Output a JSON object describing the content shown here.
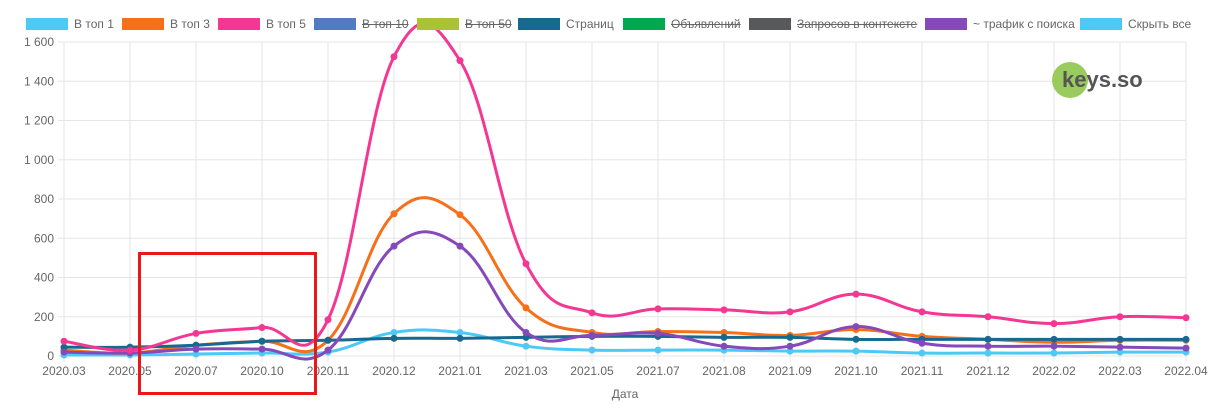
{
  "legend": [
    {
      "label": "В топ 1",
      "color": "#4dc9f6",
      "hidden": false
    },
    {
      "label": "В топ 3",
      "color": "#f67019",
      "hidden": false
    },
    {
      "label": "В топ 5",
      "color": "#f53794",
      "hidden": false
    },
    {
      "label": "В топ 10",
      "color": "#537bc4",
      "hidden": true
    },
    {
      "label": "В топ 50",
      "color": "#acc236",
      "hidden": true
    },
    {
      "label": "Страниц",
      "color": "#166a8f",
      "hidden": false
    },
    {
      "label": "Объявлений",
      "color": "#00a950",
      "hidden": true
    },
    {
      "label": "Запросов в контексте",
      "color": "#58595b",
      "hidden": true
    },
    {
      "label": "~ трафик с поиска",
      "color": "#8549ba",
      "hidden": false
    },
    {
      "label": "Скрыть все",
      "color": "#4dc9f6",
      "hidden": false
    }
  ],
  "watermark": {
    "text": "keys.so"
  },
  "chart_data": {
    "type": "line",
    "xlabel": "Дата",
    "ylabel": "",
    "ylim": [
      0,
      1600
    ],
    "yticks": [
      0,
      200,
      400,
      600,
      800,
      1000,
      1200,
      1400,
      1600
    ],
    "ytick_labels": [
      "0",
      "200",
      "400",
      "600",
      "800",
      "1 000",
      "1 200",
      "1 400",
      "1 600"
    ],
    "grid": true,
    "legend_position": "top",
    "categories": [
      "2020.03",
      "2020.05",
      "2020.07",
      "2020.10",
      "2020.11",
      "2020.12",
      "2021.01",
      "2021.03",
      "2021.05",
      "2021.07",
      "2021.08",
      "2021.09",
      "2021.10",
      "2021.11",
      "2021.12",
      "2022.02",
      "2022.03",
      "2022.04"
    ],
    "series": [
      {
        "name": "В топ 1",
        "color": "#4dc9f6",
        "values": [
          5,
          5,
          10,
          15,
          20,
          120,
          120,
          50,
          30,
          30,
          30,
          25,
          25,
          15,
          15,
          15,
          20,
          20
        ]
      },
      {
        "name": "В топ 3",
        "color": "#f67019",
        "values": [
          30,
          15,
          55,
          75,
          80,
          725,
          720,
          245,
          120,
          125,
          120,
          105,
          135,
          100,
          85,
          70,
          80,
          80
        ]
      },
      {
        "name": "Страниц",
        "color": "#166a8f",
        "values": [
          45,
          45,
          55,
          75,
          80,
          90,
          90,
          95,
          100,
          100,
          95,
          95,
          85,
          85,
          85,
          85,
          85,
          85
        ]
      },
      {
        "name": "~ трафик с поиска",
        "color": "#8549ba",
        "values": [
          20,
          15,
          35,
          35,
          30,
          560,
          560,
          120,
          105,
          115,
          50,
          50,
          150,
          65,
          50,
          50,
          45,
          40
        ]
      },
      {
        "name": "В топ 5",
        "color": "#f53794",
        "values": [
          75,
          30,
          115,
          145,
          185,
          1525,
          1505,
          470,
          220,
          240,
          235,
          225,
          315,
          225,
          200,
          165,
          200,
          195
        ]
      }
    ]
  }
}
